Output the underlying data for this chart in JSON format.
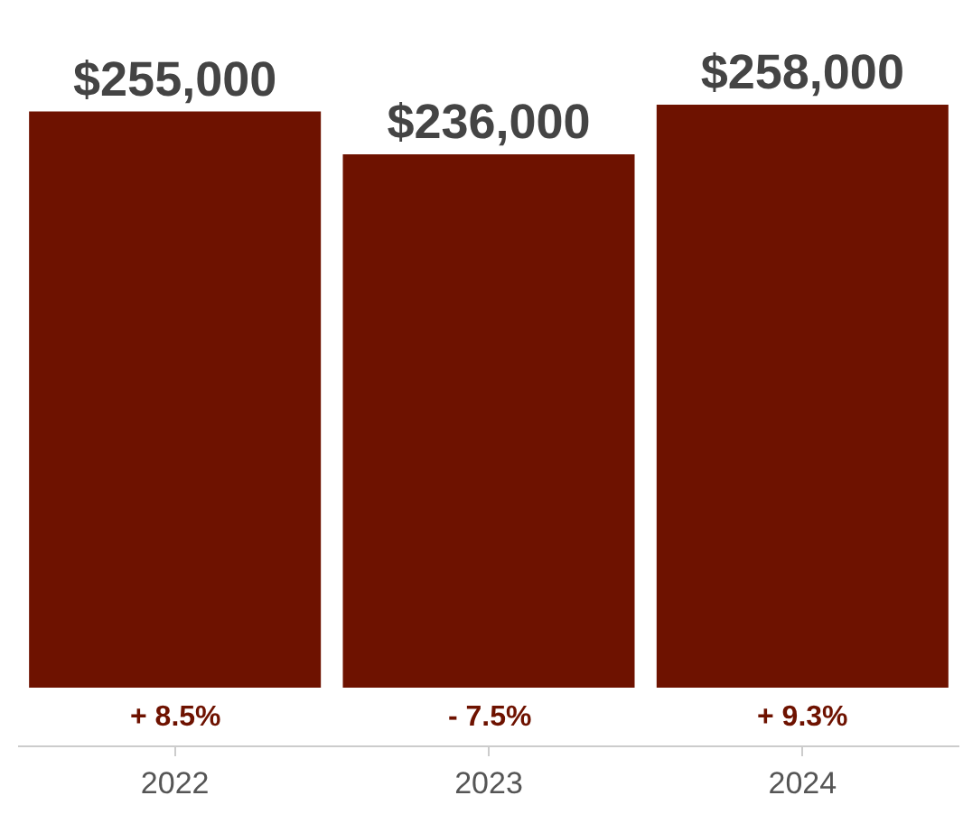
{
  "chart_data": {
    "type": "bar",
    "categories": [
      "2022",
      "2023",
      "2024"
    ],
    "values": [
      255000,
      236000,
      258000
    ],
    "value_labels": [
      "$255,000",
      "$236,000",
      "$258,000"
    ],
    "color": "#6e1200",
    "ylim": [
      0,
      258000
    ],
    "tick_labels": "x",
    "grid": false,
    "annotations": [
      {
        "text": "+ 8.5%",
        "x": "2022",
        "y": 0
      },
      {
        "text": "- 7.5%",
        "x": "2023",
        "y": 0
      },
      {
        "text": "+ 9.3%",
        "x": "2024",
        "y": 0
      }
    ]
  }
}
